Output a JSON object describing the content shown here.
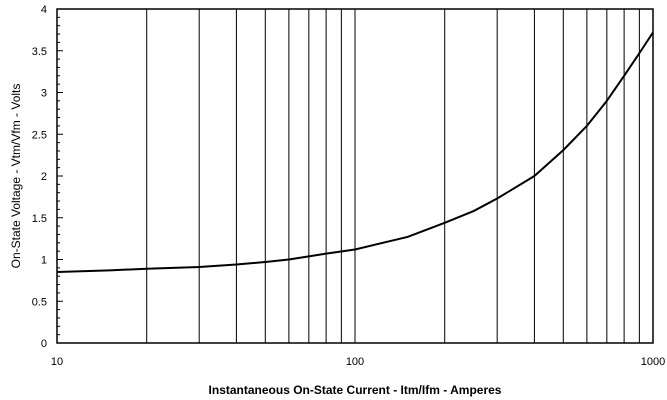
{
  "chart_data": {
    "type": "line",
    "title": "",
    "xlabel": "Instantaneous On-State Current  -  Itm/Ifm  -  Amperes",
    "ylabel": "On-State Voltage  -  Vtm/Vfm  -  Volts",
    "xscale": "log",
    "xlim": [
      10,
      1000
    ],
    "ylim": [
      0,
      4
    ],
    "grid": {
      "x": "major-and-minor",
      "y": "none"
    },
    "x_ticks": [
      "10",
      "100",
      "1000"
    ],
    "y_ticks": [
      "0",
      "0.5",
      "1",
      "1.5",
      "2",
      "2.5",
      "3",
      "3.5",
      "4"
    ],
    "series": [
      {
        "color": "#000000",
        "x": [
          10,
          15,
          20,
          30,
          40,
          50,
          60,
          80,
          100,
          150,
          200,
          250,
          300,
          400,
          500,
          600,
          700,
          800,
          900,
          1000
        ],
        "y": [
          0.85,
          0.87,
          0.89,
          0.91,
          0.94,
          0.97,
          1.0,
          1.07,
          1.12,
          1.27,
          1.44,
          1.58,
          1.73,
          2.0,
          2.31,
          2.6,
          2.9,
          3.2,
          3.47,
          3.72
        ]
      }
    ]
  }
}
